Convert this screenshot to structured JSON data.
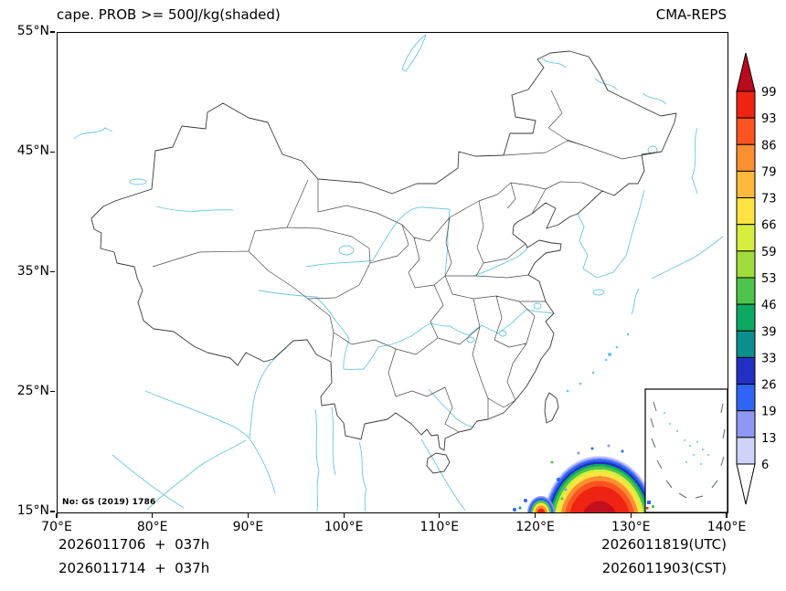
{
  "header": {
    "title": "cape. PROB >= 500J/kg(shaded)",
    "model": "CMA-REPS"
  },
  "map": {
    "watermark": "No: GS (2019) 1786"
  },
  "axes": {
    "x_ticks": [
      "70°E",
      "80°E",
      "90°E",
      "100°E",
      "110°E",
      "120°E",
      "130°E",
      "140°E"
    ],
    "y_ticks": [
      "55°N",
      "45°N",
      "35°N",
      "25°N",
      "15°N"
    ]
  },
  "footer": {
    "left_line1": "2026011706  +  037h",
    "left_line2": "2026011714  +  037h",
    "right_line1": "2026011819(UTC)",
    "right_line2": "2026011903(CST)"
  },
  "chart_data": {
    "type": "heatmap",
    "title": "cape. PROB >= 500J/kg(shaded)",
    "source_model": "CMA-REPS",
    "init_runs": [
      "2026011706  +  037h",
      "2026011714  +  037h"
    ],
    "valid_times": [
      "2026011819(UTC)",
      "2026011903(CST)"
    ],
    "x_axis": {
      "tick_labels": [
        "70°E",
        "80°E",
        "90°E",
        "100°E",
        "110°E",
        "120°E",
        "130°E",
        "140°E"
      ],
      "range_deg_east": [
        70,
        140
      ]
    },
    "y_axis": {
      "tick_labels": [
        "55°N",
        "45°N",
        "35°N",
        "25°N",
        "15°N"
      ],
      "range_deg_north": [
        15,
        55
      ]
    },
    "grid": false,
    "colorbar": {
      "position": "right",
      "extend": "both",
      "levels": [
        99,
        93,
        86,
        79,
        73,
        66,
        59,
        53,
        46,
        39,
        33,
        26,
        19,
        13,
        6
      ],
      "band_colors_top_to_bottom": [
        "#bb0a1e",
        "#ee2312",
        "#fb5420",
        "#fd8f31",
        "#fdb93c",
        "#fee341",
        "#d8ee3e",
        "#a0dc3c",
        "#4fc44a",
        "#0caa60",
        "#0d8e8e",
        "#2231c4",
        "#2f65f5",
        "#8e97f3",
        "#ced3f8",
        "#ffffff"
      ]
    },
    "shaded_regions": [
      {
        "name": "high-probability-core",
        "approx_lon_range": [
          121.5,
          132.5
        ],
        "approx_lat_range": [
          15,
          19.5
        ],
        "peak_value_percent": 99,
        "structure": "solid red core (>99%) ringed by concentric 93–6% bands at the south edge of the map"
      },
      {
        "name": "secondary-speckles",
        "approx_lon_range": [
          118,
          121.5
        ],
        "approx_lat_range": [
          15,
          16.8
        ],
        "values_percent": "scattered 6–60%"
      }
    ],
    "basemap": "China national and province boundaries (dark gray), coastlines / rivers / lakes of surrounding regions (cyan), South China Sea inset box at lower right"
  }
}
